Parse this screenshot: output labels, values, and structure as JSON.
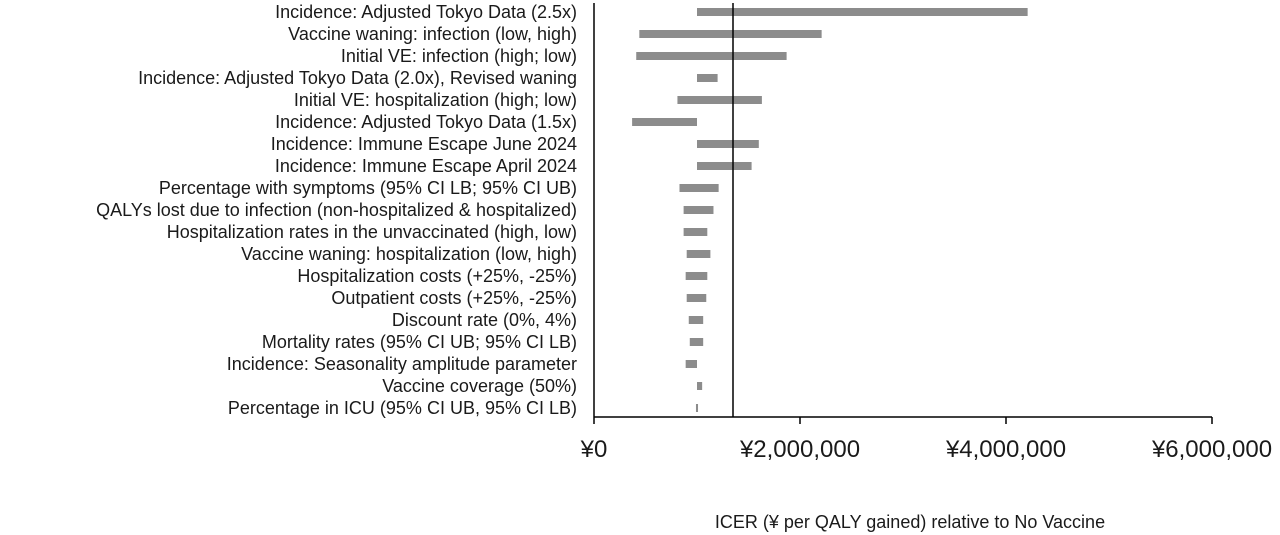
{
  "chart_data": {
    "type": "bar",
    "orientation": "horizontal",
    "subtype": "tornado",
    "xlabel": "ICER (¥ per QALY gained) relative to No Vaccine",
    "xlim": [
      0,
      6000000
    ],
    "x_ticks": [
      0,
      2000000,
      4000000,
      6000000
    ],
    "x_tick_labels": [
      "¥0",
      "¥2,000,000",
      "¥4,000,000",
      "¥6,000,000"
    ],
    "base_value": 1000000,
    "grid": false,
    "bar_color": "#8c8c8c",
    "categories": [
      "Incidence: Adjusted Tokyo Data (2.5x)",
      "Vaccine waning: infection (low, high)",
      "Initial VE: infection (high; low)",
      "Incidence: Adjusted Tokyo Data (2.0x), Revised waning",
      "Initial VE: hospitalization (high; low)",
      "Incidence: Adjusted Tokyo Data (1.5x)",
      "Incidence: Immune Escape June 2024",
      "Incidence: Immune Escape April 2024",
      "Percentage with symptoms (95% CI LB; 95% CI UB)",
      "QALYs lost due to infection (non-hospitalized & hospitalized)",
      "Hospitalization rates in the unvaccinated (high, low)",
      "Vaccine waning: hospitalization (low, high)",
      "Hospitalization costs (+25%, -25%)",
      "Outpatient costs (+25%, -25%)",
      "Discount rate (0%, 4%)",
      "Mortality rates (95% CI UB; 95% CI LB)",
      "Incidence: Seasonality amplitude parameter",
      "Vaccine coverage (50%)",
      "Percentage in ICU (95% CI UB, 95% CI LB)"
    ],
    "ranges": [
      [
        1000000,
        4210000
      ],
      [
        440000,
        2210000
      ],
      [
        410000,
        1870000
      ],
      [
        1000000,
        1200000
      ],
      [
        810000,
        1630000
      ],
      [
        370000,
        1000000
      ],
      [
        1000000,
        1600000
      ],
      [
        1000000,
        1530000
      ],
      [
        830000,
        1210000
      ],
      [
        870000,
        1160000
      ],
      [
        870000,
        1100000
      ],
      [
        900000,
        1130000
      ],
      [
        890000,
        1100000
      ],
      [
        900000,
        1090000
      ],
      [
        920000,
        1060000
      ],
      [
        930000,
        1060000
      ],
      [
        890000,
        1000000
      ],
      [
        1000000,
        1050000
      ],
      [
        990000,
        1010000
      ]
    ]
  }
}
